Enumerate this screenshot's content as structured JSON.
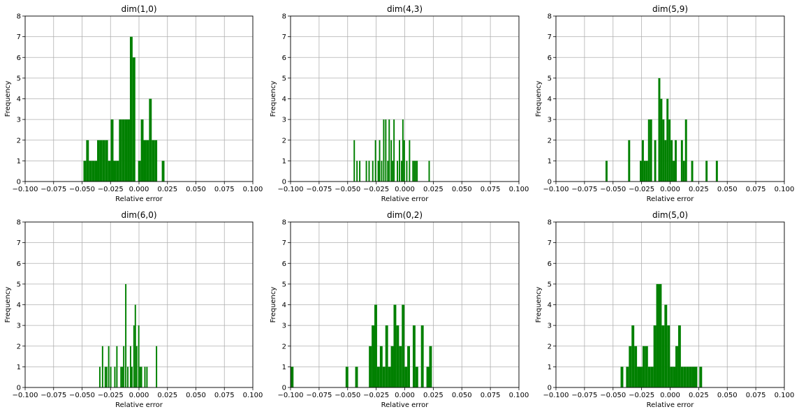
{
  "chart_data": [
    {
      "type": "bar",
      "title": "dim(1,0)",
      "xlabel": "Relative error",
      "ylabel": "Frequency",
      "xlim": [
        -0.1,
        0.1
      ],
      "ylim": [
        0,
        8
      ],
      "grid": true,
      "bar_color": "#008000",
      "xticks": [
        "−0.100",
        "−0.075",
        "−0.050",
        "−0.025",
        "0.000",
        "0.025",
        "0.050",
        "0.075",
        "0.100"
      ],
      "yticks": [
        "0",
        "1",
        "2",
        "3",
        "4",
        "5",
        "6",
        "7",
        "8"
      ],
      "bins": [
        {
          "x0": -0.0488,
          "x1": -0.0464,
          "count": 1
        },
        {
          "x0": -0.0464,
          "x1": -0.044,
          "count": 2
        },
        {
          "x0": -0.044,
          "x1": -0.0416,
          "count": 1
        },
        {
          "x0": -0.0416,
          "x1": -0.0392,
          "count": 1
        },
        {
          "x0": -0.0392,
          "x1": -0.0368,
          "count": 1
        },
        {
          "x0": -0.0368,
          "x1": -0.0344,
          "count": 2
        },
        {
          "x0": -0.0344,
          "x1": -0.032,
          "count": 2
        },
        {
          "x0": -0.032,
          "x1": -0.0296,
          "count": 2
        },
        {
          "x0": -0.0296,
          "x1": -0.0272,
          "count": 2
        },
        {
          "x0": -0.0272,
          "x1": -0.0248,
          "count": 1
        },
        {
          "x0": -0.0248,
          "x1": -0.0224,
          "count": 3
        },
        {
          "x0": -0.0224,
          "x1": -0.02,
          "count": 1
        },
        {
          "x0": -0.02,
          "x1": -0.0176,
          "count": 1
        },
        {
          "x0": -0.0176,
          "x1": -0.0152,
          "count": 3
        },
        {
          "x0": -0.0152,
          "x1": -0.0128,
          "count": 3
        },
        {
          "x0": -0.0128,
          "x1": -0.0104,
          "count": 3
        },
        {
          "x0": -0.0104,
          "x1": -0.008,
          "count": 3
        },
        {
          "x0": -0.008,
          "x1": -0.0056,
          "count": 7
        },
        {
          "x0": -0.0056,
          "x1": -0.0032,
          "count": 6
        },
        {
          "x0": -0.0008,
          "x1": 0.0016,
          "count": 1
        },
        {
          "x0": 0.0016,
          "x1": 0.004,
          "count": 3
        },
        {
          "x0": 0.004,
          "x1": 0.0064,
          "count": 2
        },
        {
          "x0": 0.0064,
          "x1": 0.0088,
          "count": 2
        },
        {
          "x0": 0.0088,
          "x1": 0.0112,
          "count": 4
        },
        {
          "x0": 0.0112,
          "x1": 0.0136,
          "count": 2
        },
        {
          "x0": 0.0136,
          "x1": 0.016,
          "count": 2
        },
        {
          "x0": 0.02,
          "x1": 0.0224,
          "count": 1
        }
      ]
    },
    {
      "type": "bar",
      "title": "dim(4,3)",
      "xlabel": "Relative error",
      "ylabel": "Frequency",
      "xlim": [
        -0.1,
        0.1
      ],
      "ylim": [
        0,
        8
      ],
      "grid": true,
      "bar_color": "#008000",
      "xticks": [
        "−0.100",
        "−0.075",
        "−0.050",
        "−0.025",
        "0.000",
        "0.025",
        "0.050",
        "0.075",
        "0.100"
      ],
      "yticks": [
        "0",
        "1",
        "2",
        "3",
        "4",
        "5",
        "6",
        "7",
        "8"
      ],
      "bins": [
        {
          "x0": -0.0448,
          "x1": -0.0436,
          "count": 2
        },
        {
          "x0": -0.0424,
          "x1": -0.0412,
          "count": 1
        },
        {
          "x0": -0.04,
          "x1": -0.0388,
          "count": 1
        },
        {
          "x0": -0.0342,
          "x1": -0.033,
          "count": 1
        },
        {
          "x0": -0.0318,
          "x1": -0.0306,
          "count": 1
        },
        {
          "x0": -0.0286,
          "x1": -0.0274,
          "count": 1
        },
        {
          "x0": -0.0262,
          "x1": -0.025,
          "count": 2
        },
        {
          "x0": -0.0238,
          "x1": -0.0226,
          "count": 1
        },
        {
          "x0": -0.0226,
          "x1": -0.0214,
          "count": 2
        },
        {
          "x0": -0.0208,
          "x1": -0.0196,
          "count": 1
        },
        {
          "x0": -0.019,
          "x1": -0.0178,
          "count": 3
        },
        {
          "x0": -0.0172,
          "x1": -0.016,
          "count": 3
        },
        {
          "x0": -0.0154,
          "x1": -0.0142,
          "count": 1
        },
        {
          "x0": -0.0142,
          "x1": -0.013,
          "count": 3
        },
        {
          "x0": -0.0124,
          "x1": -0.0112,
          "count": 2
        },
        {
          "x0": -0.0112,
          "x1": -0.01,
          "count": 1
        },
        {
          "x0": -0.01,
          "x1": -0.0088,
          "count": 3
        },
        {
          "x0": -0.007,
          "x1": -0.0058,
          "count": 1
        },
        {
          "x0": -0.0052,
          "x1": -0.004,
          "count": 2
        },
        {
          "x0": -0.0034,
          "x1": -0.0022,
          "count": 1
        },
        {
          "x0": -0.0022,
          "x1": -0.001,
          "count": 3
        },
        {
          "x0": -0.001,
          "x1": 0.0002,
          "count": 2
        },
        {
          "x0": 0.0012,
          "x1": 0.0024,
          "count": 1
        },
        {
          "x0": 0.0036,
          "x1": 0.0048,
          "count": 2
        },
        {
          "x0": 0.0066,
          "x1": 0.0078,
          "count": 1
        },
        {
          "x0": 0.0078,
          "x1": 0.009,
          "count": 1
        },
        {
          "x0": 0.009,
          "x1": 0.0102,
          "count": 1
        },
        {
          "x0": 0.0102,
          "x1": 0.0114,
          "count": 1
        },
        {
          "x0": 0.0208,
          "x1": 0.022,
          "count": 1
        }
      ]
    },
    {
      "type": "bar",
      "title": "dim(5,9)",
      "xlabel": "Relative error",
      "ylabel": "Frequency",
      "xlim": [
        -0.1,
        0.1
      ],
      "ylim": [
        0,
        8
      ],
      "grid": true,
      "bar_color": "#008000",
      "xticks": [
        "−0.100",
        "−0.075",
        "−0.050",
        "−0.025",
        "0.000",
        "0.025",
        "0.050",
        "0.075",
        "0.100"
      ],
      "yticks": [
        "0",
        "1",
        "2",
        "3",
        "4",
        "5",
        "6",
        "7",
        "8"
      ],
      "bins": [
        {
          "x0": -0.0566,
          "x1": -0.0548,
          "count": 1
        },
        {
          "x0": -0.0368,
          "x1": -0.035,
          "count": 2
        },
        {
          "x0": -0.0266,
          "x1": -0.0248,
          "count": 1
        },
        {
          "x0": -0.0248,
          "x1": -0.023,
          "count": 2
        },
        {
          "x0": -0.023,
          "x1": -0.0212,
          "count": 1
        },
        {
          "x0": -0.0212,
          "x1": -0.0194,
          "count": 1
        },
        {
          "x0": -0.0194,
          "x1": -0.0176,
          "count": 3
        },
        {
          "x0": -0.0176,
          "x1": -0.0158,
          "count": 3
        },
        {
          "x0": -0.014,
          "x1": -0.0122,
          "count": 2
        },
        {
          "x0": -0.0104,
          "x1": -0.0086,
          "count": 5
        },
        {
          "x0": -0.0086,
          "x1": -0.0068,
          "count": 4
        },
        {
          "x0": -0.0068,
          "x1": -0.005,
          "count": 3
        },
        {
          "x0": -0.005,
          "x1": -0.0032,
          "count": 2
        },
        {
          "x0": -0.0032,
          "x1": -0.0014,
          "count": 4
        },
        {
          "x0": -0.0014,
          "x1": 0.0004,
          "count": 3
        },
        {
          "x0": 0.0004,
          "x1": 0.0022,
          "count": 2
        },
        {
          "x0": 0.0022,
          "x1": 0.004,
          "count": 1
        },
        {
          "x0": 0.004,
          "x1": 0.0058,
          "count": 2
        },
        {
          "x0": 0.0094,
          "x1": 0.0112,
          "count": 2
        },
        {
          "x0": 0.0112,
          "x1": 0.013,
          "count": 1
        },
        {
          "x0": 0.013,
          "x1": 0.0148,
          "count": 3
        },
        {
          "x0": 0.0184,
          "x1": 0.0202,
          "count": 1
        },
        {
          "x0": 0.031,
          "x1": 0.0328,
          "count": 1
        },
        {
          "x0": 0.04,
          "x1": 0.0418,
          "count": 1
        }
      ]
    },
    {
      "type": "bar",
      "title": "dim(6,0)",
      "xlabel": "Relative error",
      "ylabel": "Frequency",
      "xlim": [
        -0.1,
        0.1
      ],
      "ylim": [
        0,
        8
      ],
      "grid": true,
      "bar_color": "#008000",
      "xticks": [
        "−0.100",
        "−0.075",
        "−0.050",
        "−0.025",
        "0.000",
        "0.025",
        "0.050",
        "0.075",
        "0.100"
      ],
      "yticks": [
        "0",
        "1",
        "2",
        "3",
        "4",
        "5",
        "6",
        "7",
        "8"
      ],
      "bins": [
        {
          "x0": -0.035,
          "x1": -0.0338,
          "count": 1
        },
        {
          "x0": -0.0326,
          "x1": -0.0314,
          "count": 2
        },
        {
          "x0": -0.0302,
          "x1": -0.029,
          "count": 1
        },
        {
          "x0": -0.029,
          "x1": -0.0278,
          "count": 1
        },
        {
          "x0": -0.0272,
          "x1": -0.026,
          "count": 2
        },
        {
          "x0": -0.0254,
          "x1": -0.0242,
          "count": 1
        },
        {
          "x0": -0.0218,
          "x1": -0.0206,
          "count": 1
        },
        {
          "x0": -0.02,
          "x1": -0.0188,
          "count": 2
        },
        {
          "x0": -0.0164,
          "x1": -0.0152,
          "count": 1
        },
        {
          "x0": -0.0152,
          "x1": -0.014,
          "count": 1
        },
        {
          "x0": -0.014,
          "x1": -0.0128,
          "count": 2
        },
        {
          "x0": -0.0122,
          "x1": -0.011,
          "count": 5
        },
        {
          "x0": -0.0104,
          "x1": -0.0092,
          "count": 1
        },
        {
          "x0": -0.008,
          "x1": -0.0068,
          "count": 2
        },
        {
          "x0": -0.0068,
          "x1": -0.0056,
          "count": 1
        },
        {
          "x0": -0.005,
          "x1": -0.0038,
          "count": 3
        },
        {
          "x0": -0.0038,
          "x1": -0.0026,
          "count": 4
        },
        {
          "x0": -0.0026,
          "x1": -0.0014,
          "count": 2
        },
        {
          "x0": -0.0008,
          "x1": 0.0004,
          "count": 3
        },
        {
          "x0": 0.0004,
          "x1": 0.0016,
          "count": 1
        },
        {
          "x0": 0.0016,
          "x1": 0.0028,
          "count": 1
        },
        {
          "x0": 0.0046,
          "x1": 0.0058,
          "count": 1
        },
        {
          "x0": 0.0064,
          "x1": 0.0076,
          "count": 1
        },
        {
          "x0": 0.0148,
          "x1": 0.016,
          "count": 2
        }
      ]
    },
    {
      "type": "bar",
      "title": "dim(0,2)",
      "xlabel": "Relative error",
      "ylabel": "Frequency",
      "xlim": [
        -0.1,
        0.1
      ],
      "ylim": [
        0,
        8
      ],
      "grid": true,
      "bar_color": "#008000",
      "xticks": [
        "−0.100",
        "−0.075",
        "−0.050",
        "−0.025",
        "0.000",
        "0.025",
        "0.050",
        "0.075",
        "0.100"
      ],
      "yticks": [
        "0",
        "1",
        "2",
        "3",
        "4",
        "5",
        "6",
        "7",
        "8"
      ],
      "bins": [
        {
          "x0": -0.0998,
          "x1": -0.0974,
          "count": 1
        },
        {
          "x0": -0.0518,
          "x1": -0.0494,
          "count": 1
        },
        {
          "x0": -0.0434,
          "x1": -0.041,
          "count": 1
        },
        {
          "x0": -0.0314,
          "x1": -0.029,
          "count": 2
        },
        {
          "x0": -0.029,
          "x1": -0.0266,
          "count": 3
        },
        {
          "x0": -0.0266,
          "x1": -0.0242,
          "count": 4
        },
        {
          "x0": -0.0242,
          "x1": -0.0218,
          "count": 1
        },
        {
          "x0": -0.0218,
          "x1": -0.0194,
          "count": 2
        },
        {
          "x0": -0.0194,
          "x1": -0.017,
          "count": 1
        },
        {
          "x0": -0.017,
          "x1": -0.0146,
          "count": 3
        },
        {
          "x0": -0.0146,
          "x1": -0.0122,
          "count": 1
        },
        {
          "x0": -0.0122,
          "x1": -0.0098,
          "count": 2
        },
        {
          "x0": -0.0098,
          "x1": -0.0074,
          "count": 4
        },
        {
          "x0": -0.0074,
          "x1": -0.005,
          "count": 3
        },
        {
          "x0": -0.005,
          "x1": -0.0026,
          "count": 2
        },
        {
          "x0": -0.0026,
          "x1": -0.0002,
          "count": 4
        },
        {
          "x0": -0.0002,
          "x1": 0.0022,
          "count": 1
        },
        {
          "x0": 0.0022,
          "x1": 0.0046,
          "count": 2
        },
        {
          "x0": 0.007,
          "x1": 0.0094,
          "count": 3
        },
        {
          "x0": 0.0094,
          "x1": 0.0118,
          "count": 1
        },
        {
          "x0": 0.0142,
          "x1": 0.0166,
          "count": 3
        },
        {
          "x0": 0.019,
          "x1": 0.0214,
          "count": 1
        },
        {
          "x0": 0.0214,
          "x1": 0.0238,
          "count": 2
        }
      ]
    },
    {
      "type": "bar",
      "title": "dim(5,0)",
      "xlabel": "Relative error",
      "ylabel": "Frequency",
      "xlim": [
        -0.1,
        0.1
      ],
      "ylim": [
        0,
        8
      ],
      "grid": true,
      "bar_color": "#008000",
      "xticks": [
        "−0.100",
        "−0.075",
        "−0.050",
        "−0.025",
        "0.000",
        "0.025",
        "0.050",
        "0.075",
        "0.100"
      ],
      "yticks": [
        "0",
        "1",
        "2",
        "3",
        "4",
        "5",
        "6",
        "7",
        "8"
      ],
      "bins": [
        {
          "x0": -0.0434,
          "x1": -0.041,
          "count": 1
        },
        {
          "x0": -0.0386,
          "x1": -0.0362,
          "count": 1
        },
        {
          "x0": -0.0362,
          "x1": -0.0338,
          "count": 2
        },
        {
          "x0": -0.0338,
          "x1": -0.0314,
          "count": 3
        },
        {
          "x0": -0.0314,
          "x1": -0.029,
          "count": 2
        },
        {
          "x0": -0.029,
          "x1": -0.0266,
          "count": 1
        },
        {
          "x0": -0.0266,
          "x1": -0.0242,
          "count": 1
        },
        {
          "x0": -0.0242,
          "x1": -0.0218,
          "count": 2
        },
        {
          "x0": -0.0218,
          "x1": -0.0194,
          "count": 2
        },
        {
          "x0": -0.0194,
          "x1": -0.017,
          "count": 1
        },
        {
          "x0": -0.017,
          "x1": -0.0146,
          "count": 1
        },
        {
          "x0": -0.0146,
          "x1": -0.0122,
          "count": 3
        },
        {
          "x0": -0.0122,
          "x1": -0.0098,
          "count": 5
        },
        {
          "x0": -0.0098,
          "x1": -0.0074,
          "count": 5
        },
        {
          "x0": -0.0074,
          "x1": -0.005,
          "count": 3
        },
        {
          "x0": -0.005,
          "x1": -0.0026,
          "count": 4
        },
        {
          "x0": -0.0026,
          "x1": -0.0002,
          "count": 3
        },
        {
          "x0": -0.0002,
          "x1": 0.0022,
          "count": 1
        },
        {
          "x0": 0.0022,
          "x1": 0.0046,
          "count": 1
        },
        {
          "x0": 0.0046,
          "x1": 0.007,
          "count": 2
        },
        {
          "x0": 0.007,
          "x1": 0.0094,
          "count": 3
        },
        {
          "x0": 0.0094,
          "x1": 0.0118,
          "count": 1
        },
        {
          "x0": 0.0118,
          "x1": 0.0142,
          "count": 1
        },
        {
          "x0": 0.0142,
          "x1": 0.0166,
          "count": 1
        },
        {
          "x0": 0.0166,
          "x1": 0.019,
          "count": 1
        },
        {
          "x0": 0.019,
          "x1": 0.0214,
          "count": 1
        },
        {
          "x0": 0.0214,
          "x1": 0.0238,
          "count": 1
        },
        {
          "x0": 0.0256,
          "x1": 0.028,
          "count": 1
        }
      ]
    }
  ]
}
